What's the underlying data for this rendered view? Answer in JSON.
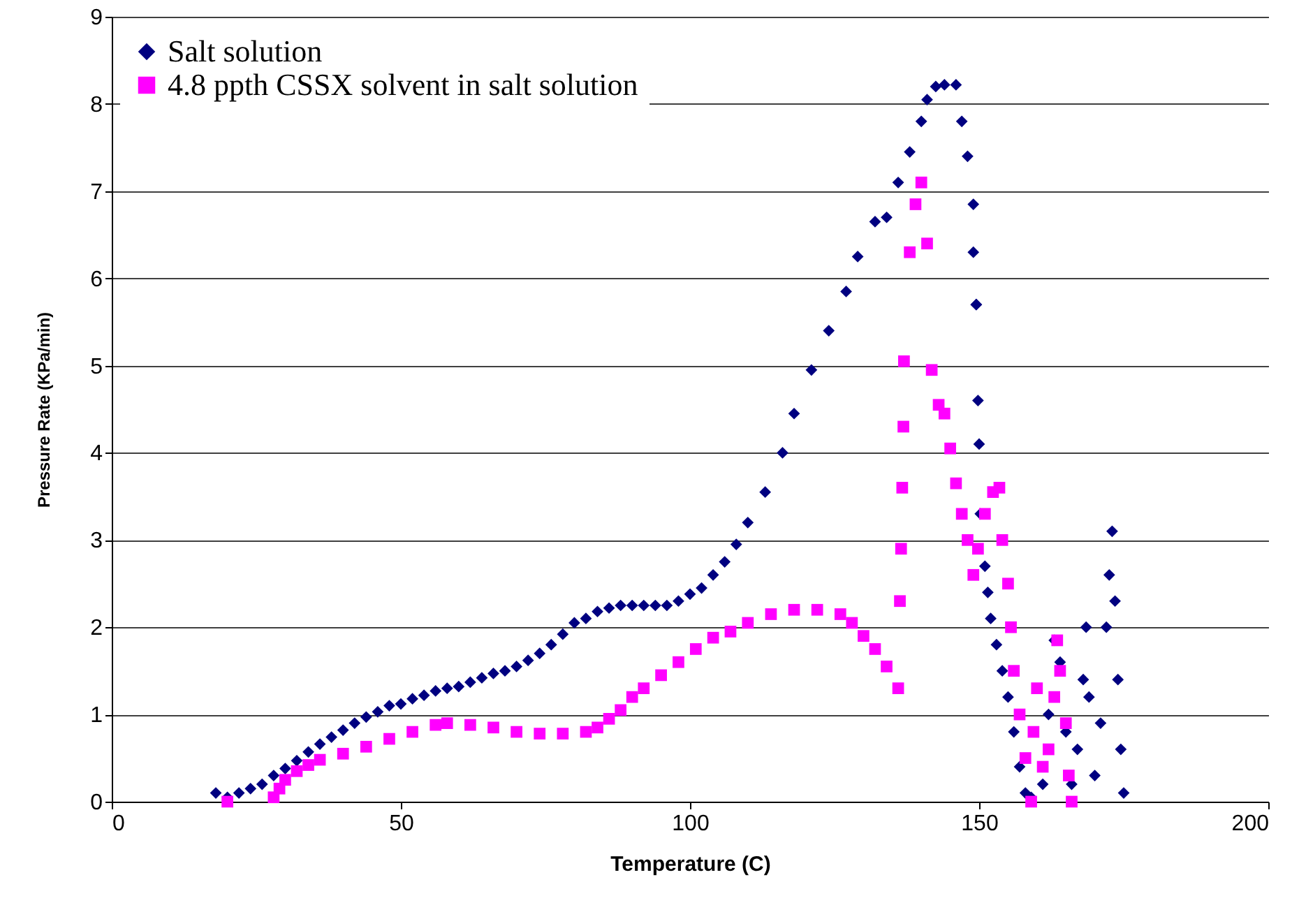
{
  "chart_data": {
    "type": "scatter",
    "xlabel": "Temperature (C)",
    "ylabel": "Pressure Rate (KPa/min)",
    "xlim": [
      0,
      200
    ],
    "xticks": [
      0,
      50,
      100,
      150,
      200
    ],
    "ylim": [
      0,
      9
    ],
    "yticks": [
      0,
      1,
      2,
      3,
      4,
      5,
      6,
      7,
      8,
      9
    ],
    "grid": "y",
    "legend": "top left",
    "series": [
      {
        "name": "Salt solution",
        "color": "#000080",
        "marker": "diamond",
        "x": [
          18,
          20,
          22,
          24,
          26,
          28,
          30,
          32,
          34,
          36,
          38,
          40,
          42,
          44,
          46,
          48,
          50,
          52,
          54,
          56,
          58,
          60,
          62,
          64,
          66,
          68,
          70,
          72,
          74,
          76,
          78,
          80,
          82,
          84,
          86,
          88,
          90,
          92,
          94,
          96,
          98,
          100,
          102,
          104,
          106,
          108,
          110,
          113,
          116,
          118,
          121,
          124,
          127,
          129,
          132,
          134,
          136,
          138,
          140,
          141,
          142.5,
          144,
          146,
          147,
          148,
          149,
          149,
          149.5,
          149.5,
          149.8,
          150,
          150.2,
          151,
          151.5,
          152,
          153,
          154,
          155,
          156,
          157,
          158,
          159,
          161,
          162,
          163,
          164,
          165,
          166,
          167,
          168,
          168.5,
          169,
          170,
          171,
          172,
          172.5,
          173,
          173.5,
          174,
          174.5,
          175
        ],
        "values": [
          0.1,
          0.05,
          0.1,
          0.15,
          0.2,
          0.3,
          0.38,
          0.47,
          0.57,
          0.66,
          0.74,
          0.82,
          0.9,
          0.97,
          1.03,
          1.1,
          1.12,
          1.18,
          1.22,
          1.27,
          1.3,
          1.32,
          1.37,
          1.42,
          1.47,
          1.5,
          1.55,
          1.62,
          1.7,
          1.8,
          1.92,
          2.05,
          2.1,
          2.18,
          2.22,
          2.25,
          2.25,
          2.25,
          2.25,
          2.25,
          2.3,
          2.38,
          2.45,
          2.6,
          2.75,
          2.95,
          3.2,
          3.55,
          4.0,
          4.45,
          4.95,
          5.4,
          5.85,
          6.25,
          6.65,
          6.7,
          7.1,
          7.45,
          7.8,
          8.05,
          8.2,
          8.22,
          8.22,
          7.8,
          7.4,
          6.85,
          6.3,
          5.7,
          5.7,
          4.6,
          4.1,
          3.3,
          2.7,
          2.4,
          2.1,
          1.8,
          1.5,
          1.2,
          0.8,
          0.4,
          0.1,
          0.05,
          0.2,
          1.0,
          1.85,
          1.6,
          0.8,
          0.2,
          0.6,
          1.4,
          2.0,
          1.2,
          0.3,
          0.9,
          2.0,
          2.6,
          3.1,
          2.3,
          1.4,
          0.6,
          0.1
        ]
      },
      {
        "name": "4.8 ppth CSSX solvent in salt solution",
        "color": "#ff00ff",
        "marker": "square",
        "x": [
          20,
          28,
          29,
          30,
          32,
          34,
          36,
          40,
          44,
          48,
          52,
          56,
          58,
          62,
          66,
          70,
          74,
          78,
          82,
          84,
          86,
          88,
          90,
          92,
          95,
          98,
          101,
          104,
          107,
          110,
          114,
          118,
          122,
          126,
          128,
          130,
          132,
          134,
          136,
          136.3,
          136.5,
          136.7,
          136.9,
          137,
          138,
          139,
          140,
          141,
          141.8,
          143,
          144,
          145,
          146,
          147,
          148,
          149,
          149.8,
          151,
          152.4,
          153.5,
          154,
          155,
          155.5,
          156,
          157,
          158,
          159,
          159.4,
          160,
          161,
          162,
          163,
          163.5,
          164,
          165,
          165.5,
          166
        ],
        "values": [
          0,
          0.05,
          0.15,
          0.25,
          0.35,
          0.42,
          0.48,
          0.55,
          0.63,
          0.72,
          0.8,
          0.88,
          0.9,
          0.88,
          0.85,
          0.8,
          0.78,
          0.78,
          0.8,
          0.85,
          0.95,
          1.05,
          1.2,
          1.3,
          1.45,
          1.6,
          1.75,
          1.88,
          1.95,
          2.05,
          2.15,
          2.2,
          2.2,
          2.15,
          2.05,
          1.9,
          1.75,
          1.55,
          1.3,
          2.3,
          2.9,
          3.6,
          4.3,
          5.05,
          6.3,
          6.85,
          7.1,
          6.4,
          4.95,
          4.55,
          4.45,
          4.05,
          3.65,
          3.3,
          3.0,
          2.6,
          2.9,
          3.3,
          3.55,
          3.6,
          3.0,
          2.5,
          2.0,
          1.5,
          1.0,
          0.5,
          0.0,
          0.8,
          1.3,
          0.4,
          0.6,
          1.2,
          1.85,
          1.5,
          0.9,
          0.3,
          0.0
        ]
      }
    ]
  }
}
